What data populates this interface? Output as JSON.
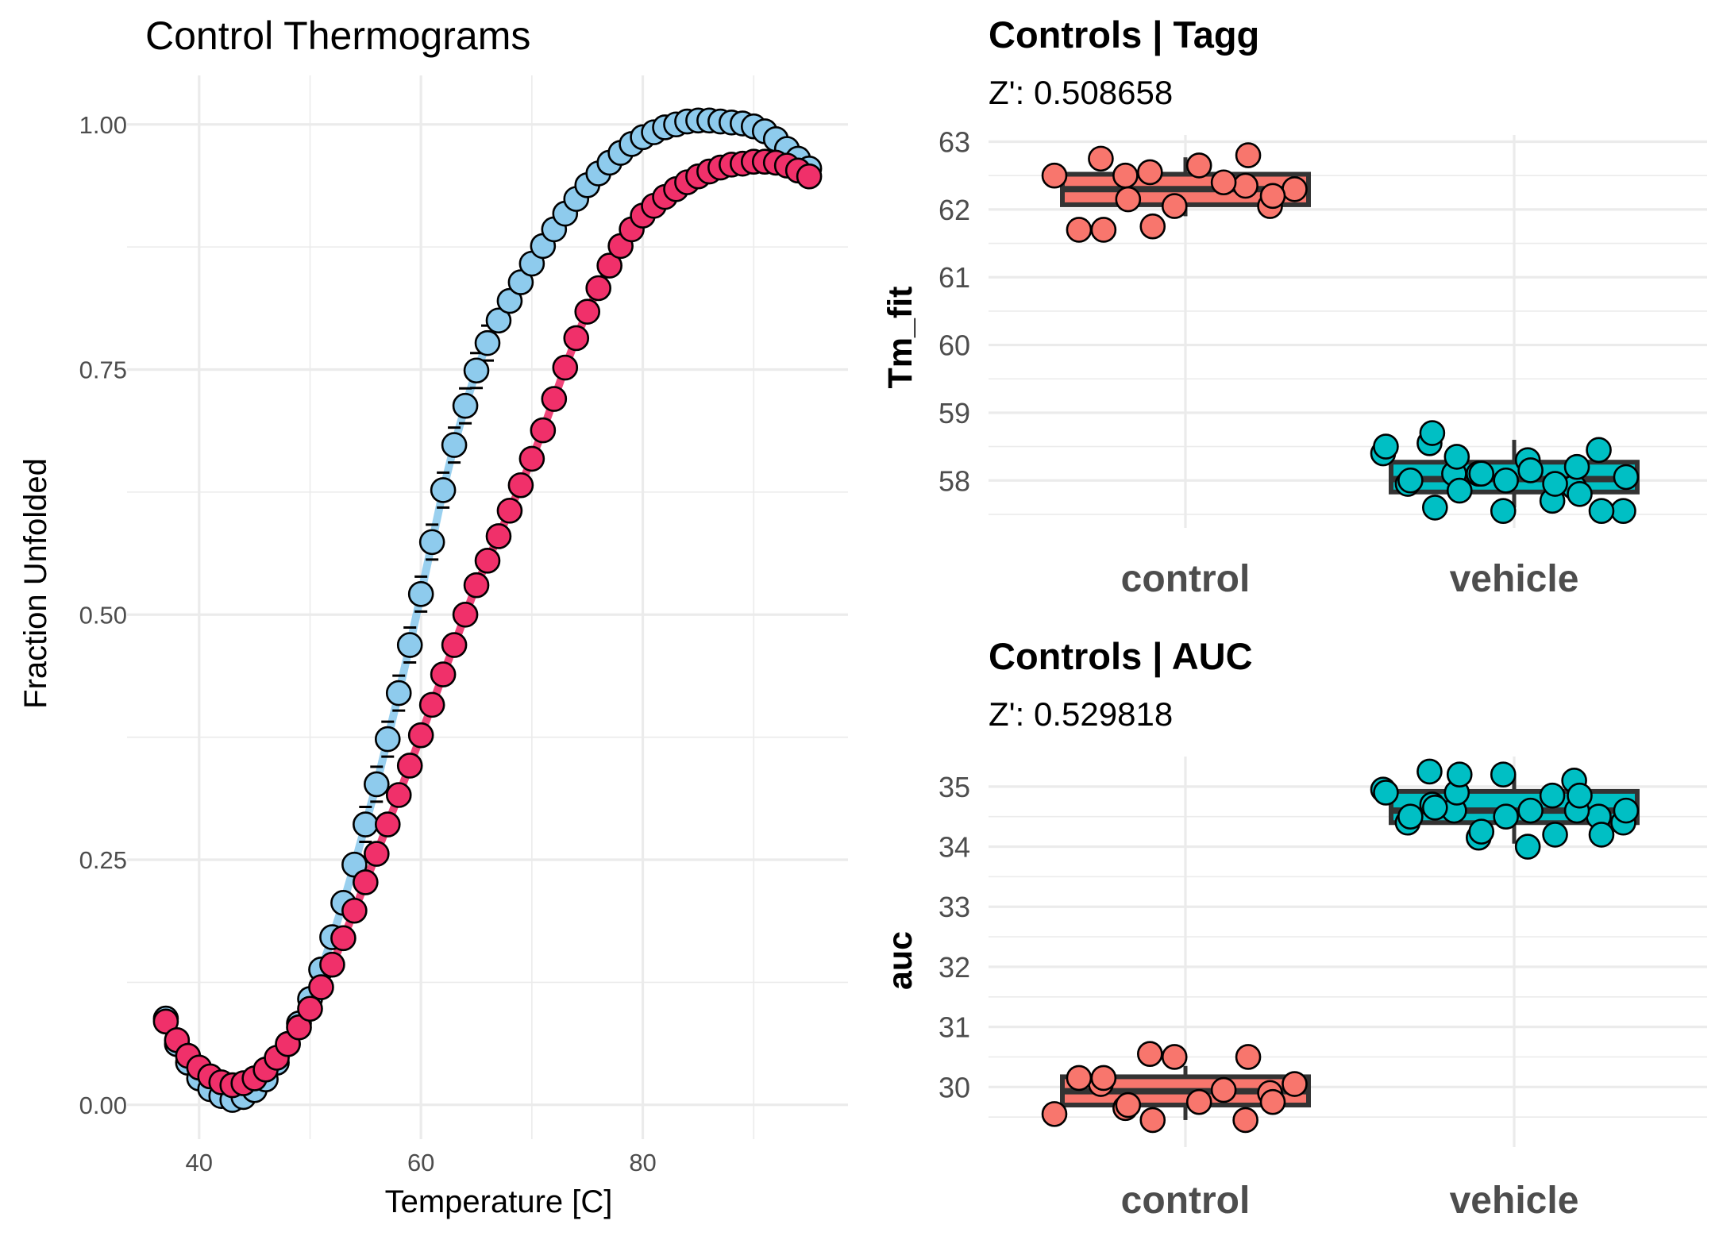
{
  "chart_data": [
    {
      "type": "line",
      "title": "Control Thermograms",
      "xlabel": "Temperature [C]",
      "ylabel": "Fraction Unfolded",
      "xlim": [
        33.5,
        98.5
      ],
      "ylim": [
        -0.035,
        1.05
      ],
      "x_ticks": [
        40,
        60,
        80
      ],
      "x_tick_labels": [
        "40",
        "60",
        "80"
      ],
      "y_ticks": [
        0,
        0.25,
        0.5,
        0.75,
        1
      ],
      "y_tick_labels": [
        "0.00",
        "0.25",
        "0.50",
        "0.75",
        "1.00"
      ],
      "grid": true,
      "legend": "none",
      "series": [
        {
          "color": "#8ecbed",
          "x": [
            37,
            38,
            39,
            40,
            41,
            42,
            43,
            44,
            45,
            46,
            47,
            48,
            49,
            50,
            51,
            52,
            53,
            54,
            55,
            56,
            57,
            58,
            59,
            60,
            61,
            62,
            63,
            64,
            65,
            66,
            67,
            68,
            69,
            70,
            71,
            72,
            73,
            74,
            75,
            76,
            77,
            78,
            79,
            80,
            81,
            82,
            83,
            84,
            85,
            86,
            87,
            88,
            89,
            90,
            91,
            92,
            93,
            94,
            95
          ],
          "y": [
            0.088,
            0.062,
            0.043,
            0.027,
            0.016,
            0.009,
            0.005,
            0.008,
            0.015,
            0.026,
            0.043,
            0.062,
            0.083,
            0.108,
            0.138,
            0.171,
            0.206,
            0.245,
            0.286,
            0.327,
            0.373,
            0.42,
            0.469,
            0.521,
            0.574,
            0.627,
            0.673,
            0.713,
            0.749,
            0.777,
            0.8,
            0.82,
            0.839,
            0.858,
            0.876,
            0.893,
            0.909,
            0.924,
            0.938,
            0.95,
            0.961,
            0.971,
            0.98,
            0.987,
            0.992,
            0.997,
            1,
            1.003,
            1.004,
            1.004,
            1.003,
            1.002,
            1.001,
            0.998,
            0.993,
            0.985,
            0.975,
            0.965,
            0.955
          ]
        },
        {
          "color": "#f0306a",
          "x": [
            37,
            38,
            39,
            40,
            41,
            42,
            43,
            44,
            45,
            46,
            47,
            48,
            49,
            50,
            51,
            52,
            53,
            54,
            55,
            56,
            57,
            58,
            59,
            60,
            61,
            62,
            63,
            64,
            65,
            66,
            67,
            68,
            69,
            70,
            71,
            72,
            73,
            74,
            75,
            76,
            77,
            78,
            79,
            80,
            81,
            82,
            83,
            84,
            85,
            86,
            87,
            88,
            89,
            90,
            91,
            92,
            93,
            94,
            95
          ],
          "y": [
            0.085,
            0.066,
            0.05,
            0.038,
            0.029,
            0.023,
            0.02,
            0.022,
            0.027,
            0.036,
            0.048,
            0.062,
            0.079,
            0.098,
            0.12,
            0.143,
            0.17,
            0.198,
            0.227,
            0.256,
            0.286,
            0.316,
            0.346,
            0.377,
            0.408,
            0.439,
            0.469,
            0.5,
            0.53,
            0.555,
            0.58,
            0.606,
            0.632,
            0.659,
            0.688,
            0.72,
            0.752,
            0.782,
            0.809,
            0.833,
            0.856,
            0.876,
            0.893,
            0.907,
            0.917,
            0.926,
            0.934,
            0.941,
            0.947,
            0.952,
            0.956,
            0.959,
            0.96,
            0.962,
            0.962,
            0.961,
            0.958,
            0.953,
            0.947
          ]
        }
      ]
    },
    {
      "type": "box",
      "title": "Controls | Tagg",
      "subtitle": "Z': 0.508658",
      "xlabel": "",
      "ylabel": "Tm_fit",
      "categories": [
        "control",
        "vehicle"
      ],
      "ylim": [
        57.3,
        63.1
      ],
      "y_ticks": [
        58,
        59,
        60,
        61,
        62,
        63
      ],
      "grid": true,
      "legend": "none",
      "boxes": [
        {
          "category": "control",
          "color": "#f8766d",
          "q1": 62.07,
          "median": 62.3,
          "q3": 62.52,
          "whisker_low": 61.9,
          "whisker_high": 62.77
        },
        {
          "category": "vehicle",
          "color": "#00bfc4",
          "q1": 57.83,
          "median": 58.02,
          "q3": 58.27,
          "whisker_low": 57.6,
          "whisker_high": 58.6
        }
      ],
      "points": [
        {
          "category": "control",
          "values": [
            62.75,
            62.35,
            62.5,
            62.05,
            62.55,
            62.3,
            62.05,
            62.5,
            62.65,
            61.7,
            62.4,
            61.7,
            62.8,
            62.15,
            62.2,
            61.75
          ]
        },
        {
          "category": "vehicle",
          "values": [
            58.55,
            57.9,
            58.1,
            58.45,
            58.1,
            57.55,
            57.55,
            58.4,
            58.3,
            57.95,
            57.7,
            58.7,
            58.2,
            58.35,
            57.55,
            58.1,
            58.05,
            58.0,
            58.5,
            58.15,
            58.0,
            57.95,
            57.6,
            57.8,
            57.85
          ]
        }
      ]
    },
    {
      "type": "box",
      "title": "Controls | AUC",
      "subtitle": "Z': 0.529818",
      "xlabel": "",
      "ylabel": "auc",
      "categories": [
        "control",
        "vehicle"
      ],
      "ylim": [
        29.0,
        35.5
      ],
      "y_ticks": [
        30,
        31,
        32,
        33,
        34,
        35
      ],
      "grid": true,
      "legend": "none",
      "boxes": [
        {
          "category": "control",
          "color": "#f8766d",
          "q1": 29.7,
          "median": 29.93,
          "q3": 30.17,
          "whisker_low": 29.45,
          "whisker_high": 30.35
        },
        {
          "category": "vehicle",
          "color": "#00bfc4",
          "q1": 34.4,
          "median": 34.6,
          "q3": 34.92,
          "whisker_low": 34.05,
          "whisker_high": 35.2
        }
      ],
      "points": [
        {
          "category": "control",
          "values": [
            30.05,
            29.45,
            29.65,
            29.9,
            30.55,
            30.05,
            30.5,
            29.55,
            29.75,
            30.15,
            29.95,
            30.15,
            30.5,
            29.7,
            29.75,
            29.45
          ]
        },
        {
          "category": "vehicle",
          "values": [
            35.25,
            35.1,
            34.6,
            34.5,
            34.15,
            34.4,
            35.2,
            34.95,
            34.0,
            34.4,
            34.85,
            34.7,
            34.6,
            34.9,
            34.2,
            34.25,
            34.6,
            34.5,
            34.9,
            34.6,
            34.5,
            34.2,
            34.65,
            34.85,
            35.2
          ]
        }
      ]
    }
  ]
}
